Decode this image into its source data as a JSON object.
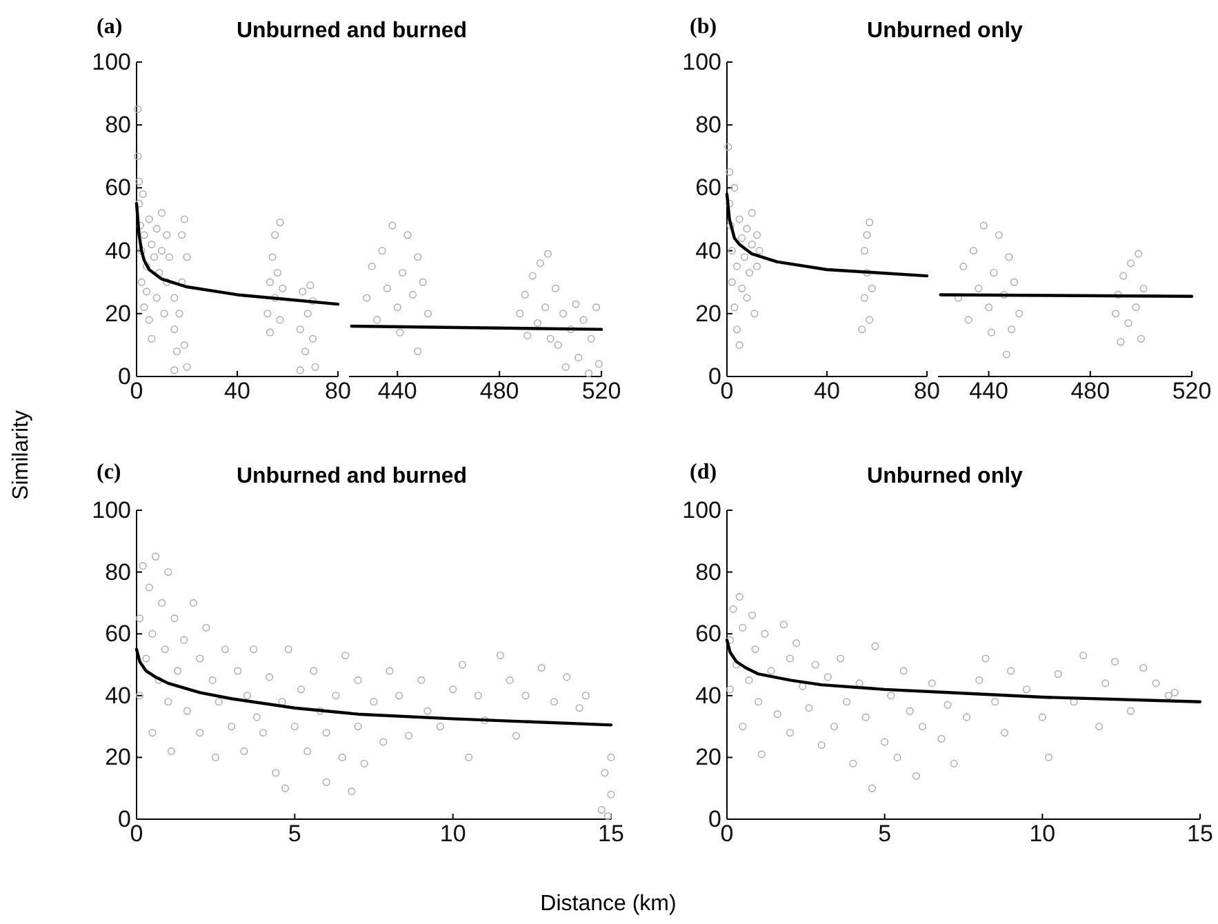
{
  "chart_data": [
    {
      "type": "scatter",
      "title": "Unburned and burned",
      "annotations": [
        "(a)"
      ],
      "ylabel": "Similarity",
      "xlim": [
        0,
        80
      ],
      "xticks": [
        0,
        40,
        80
      ],
      "ylim": [
        0,
        100
      ],
      "yticks": [
        0,
        20,
        40,
        60,
        80,
        100
      ],
      "series": [
        {
          "marker": "circle",
          "color": "#b0b0b0",
          "x": [
            0.5,
            0.5,
            1,
            1,
            1.5,
            2,
            2,
            2.5,
            3,
            3,
            4,
            4,
            5,
            5,
            6,
            6,
            7,
            8,
            8,
            9,
            10,
            10,
            11,
            12,
            12,
            13,
            15,
            15,
            15,
            16,
            17,
            18,
            18,
            19,
            19,
            20,
            20,
            52,
            53,
            53,
            54,
            55,
            55,
            56,
            57,
            57,
            58,
            65,
            65,
            66,
            67,
            68,
            69,
            70,
            71,
            70
          ],
          "values": [
            85,
            70,
            62,
            55,
            48,
            40,
            30,
            58,
            22,
            45,
            35,
            27,
            50,
            18,
            42,
            12,
            38,
            47,
            25,
            33,
            52,
            40,
            20,
            45,
            30,
            38,
            2,
            15,
            25,
            8,
            20,
            45,
            30,
            50,
            10,
            38,
            3,
            20,
            30,
            14,
            38,
            25,
            45,
            33,
            49,
            18,
            28,
            2,
            15,
            27,
            8,
            20,
            29,
            12,
            3,
            24
          ]
        },
        {
          "type": "line",
          "color": "#000000",
          "x": [
            0,
            1,
            2,
            3,
            5,
            10,
            20,
            40,
            60,
            80
          ],
          "values": [
            55,
            45,
            40,
            37,
            34,
            31,
            28.5,
            26,
            24.5,
            23
          ]
        }
      ]
    },
    {
      "type": "scatter",
      "xlim": [
        421,
        520
      ],
      "xticks": [
        440,
        480,
        520
      ],
      "ylim": [
        0,
        100
      ],
      "tick_labels": "x",
      "series": [
        {
          "marker": "circle",
          "color": "#b0b0b0",
          "x": [
            428,
            430,
            432,
            434,
            436,
            438,
            440,
            441,
            442,
            444,
            446,
            448,
            448,
            450,
            452,
            488,
            490,
            491,
            493,
            495,
            496,
            498,
            499,
            500,
            502,
            503,
            505,
            506,
            508,
            510,
            511,
            513,
            515,
            516,
            518,
            519
          ],
          "values": [
            25,
            35,
            18,
            40,
            28,
            48,
            22,
            14,
            33,
            45,
            26,
            8,
            38,
            30,
            20,
            20,
            26,
            13,
            32,
            17,
            36,
            22,
            39,
            12,
            28,
            10,
            20,
            3,
            15,
            23,
            6,
            18,
            1,
            12,
            22,
            4
          ]
        },
        {
          "type": "line",
          "color": "#000000",
          "x": [
            422,
            520
          ],
          "values": [
            16,
            15
          ]
        }
      ]
    },
    {
      "type": "scatter",
      "title": "Unburned only",
      "annotations": [
        "(b)"
      ],
      "xlim": [
        0,
        80
      ],
      "xticks": [
        0,
        40,
        80
      ],
      "ylim": [
        0,
        100
      ],
      "yticks": [
        0,
        20,
        40,
        60,
        80,
        100
      ],
      "series": [
        {
          "marker": "circle",
          "color": "#b0b0b0",
          "x": [
            0.5,
            1,
            1,
            1.5,
            2,
            2,
            3,
            3,
            4,
            4,
            5,
            5,
            6,
            6,
            7,
            8,
            8,
            9,
            10,
            10,
            11,
            12,
            12,
            13,
            54,
            55,
            55,
            56,
            57,
            57,
            58,
            56
          ],
          "values": [
            73,
            65,
            55,
            48,
            40,
            30,
            60,
            22,
            35,
            15,
            50,
            10,
            44,
            28,
            38,
            47,
            25,
            33,
            52,
            42,
            20,
            45,
            35,
            40,
            15,
            25,
            40,
            33,
            49,
            18,
            28,
            45
          ]
        },
        {
          "type": "line",
          "color": "#000000",
          "x": [
            0,
            1,
            3,
            5,
            10,
            20,
            40,
            60,
            80
          ],
          "values": [
            58,
            50,
            44,
            42,
            39,
            36.5,
            34,
            33,
            32
          ]
        }
      ]
    },
    {
      "type": "scatter",
      "xlim": [
        420,
        520
      ],
      "xticks": [
        440,
        480,
        520
      ],
      "ylim": [
        0,
        100
      ],
      "tick_labels": "x",
      "series": [
        {
          "marker": "circle",
          "color": "#b0b0b0",
          "x": [
            428,
            430,
            432,
            434,
            436,
            438,
            440,
            441,
            442,
            444,
            446,
            447,
            448,
            450,
            452,
            449,
            490,
            491,
            492,
            493,
            495,
            496,
            498,
            499,
            500,
            501
          ],
          "values": [
            25,
            35,
            18,
            40,
            28,
            48,
            22,
            14,
            33,
            45,
            26,
            7,
            38,
            30,
            20,
            15,
            20,
            26,
            11,
            32,
            17,
            36,
            22,
            39,
            12,
            28
          ]
        },
        {
          "type": "line",
          "color": "#000000",
          "x": [
            421,
            520
          ],
          "values": [
            26,
            25.5
          ]
        }
      ]
    },
    {
      "type": "scatter",
      "title": "Unburned and burned",
      "annotations": [
        "(c)"
      ],
      "xlabel": "Distance (km)",
      "xlim": [
        0,
        15
      ],
      "xticks": [
        0,
        5,
        10,
        15
      ],
      "ylim": [
        0,
        100
      ],
      "yticks": [
        0,
        20,
        40,
        60,
        80,
        100
      ],
      "series": [
        {
          "marker": "circle",
          "color": "#b0b0b0",
          "x": [
            0.1,
            0.1,
            0.2,
            0.3,
            0.4,
            0.5,
            0.5,
            0.6,
            0.7,
            0.8,
            0.9,
            1,
            1,
            1.1,
            1.2,
            1.3,
            1.5,
            1.6,
            1.8,
            2,
            2,
            2.2,
            2.4,
            2.5,
            2.6,
            2.8,
            3,
            3.2,
            3.4,
            3.5,
            3.7,
            3.8,
            4,
            4.2,
            4.4,
            4.6,
            4.7,
            4.8,
            5,
            5.2,
            5.4,
            5.6,
            5.8,
            6,
            6,
            6.3,
            6.5,
            6.6,
            6.8,
            7,
            7,
            7.2,
            7.5,
            7.8,
            8,
            8.3,
            8.6,
            9,
            9.2,
            9.6,
            10,
            10.3,
            10.5,
            10.8,
            11,
            11.5,
            11.8,
            12,
            12.3,
            12.8,
            13.2,
            13.6,
            14,
            14.2,
            14.8,
            14.9,
            15,
            14.7,
            15
          ],
          "values": [
            65,
            40,
            82,
            52,
            75,
            60,
            28,
            85,
            45,
            70,
            55,
            38,
            80,
            22,
            65,
            48,
            58,
            35,
            70,
            52,
            28,
            62,
            45,
            20,
            38,
            55,
            30,
            48,
            22,
            40,
            55,
            33,
            28,
            46,
            15,
            38,
            10,
            55,
            30,
            42,
            22,
            48,
            35,
            12,
            28,
            40,
            20,
            53,
            9,
            30,
            45,
            18,
            38,
            25,
            48,
            40,
            27,
            45,
            35,
            30,
            42,
            50,
            20,
            40,
            32,
            53,
            45,
            27,
            40,
            49,
            38,
            46,
            36,
            40,
            15,
            1,
            20,
            3,
            8
          ]
        },
        {
          "type": "line",
          "color": "#000000",
          "x": [
            0,
            0.1,
            0.3,
            0.6,
            1,
            2,
            3,
            5,
            7,
            10,
            15
          ],
          "values": [
            55,
            51,
            48,
            46,
            44,
            41,
            39,
            36,
            34,
            32.5,
            30.5
          ]
        }
      ]
    },
    {
      "type": "scatter",
      "title": "Unburned only",
      "annotations": [
        "(d)"
      ],
      "xlim": [
        0,
        15
      ],
      "xticks": [
        0,
        5,
        10,
        15
      ],
      "ylim": [
        0,
        100
      ],
      "yticks": [
        0,
        20,
        40,
        60,
        80,
        100
      ],
      "series": [
        {
          "marker": "circle",
          "color": "#b0b0b0",
          "x": [
            0.1,
            0.1,
            0.2,
            0.3,
            0.4,
            0.5,
            0.5,
            0.7,
            0.8,
            0.9,
            1,
            1.1,
            1.2,
            1.4,
            1.6,
            1.8,
            2,
            2,
            2.2,
            2.4,
            2.6,
            2.8,
            3,
            3.2,
            3.4,
            3.6,
            3.8,
            4,
            4.2,
            4.4,
            4.6,
            4.7,
            5,
            5.2,
            5.4,
            5.6,
            5.8,
            6,
            6.2,
            6.5,
            6.8,
            7,
            7.2,
            7.6,
            8,
            8.2,
            8.5,
            8.8,
            9,
            9.5,
            10,
            10.2,
            10.5,
            11,
            11.3,
            11.8,
            12,
            12.3,
            12.8,
            13.2,
            13.6,
            14,
            14.2
          ],
          "values": [
            58,
            42,
            68,
            50,
            72,
            62,
            30,
            45,
            66,
            55,
            38,
            21,
            60,
            48,
            34,
            63,
            52,
            28,
            57,
            43,
            36,
            50,
            24,
            46,
            30,
            52,
            38,
            18,
            44,
            33,
            10,
            56,
            25,
            40,
            20,
            48,
            35,
            14,
            30,
            44,
            26,
            37,
            18,
            33,
            45,
            52,
            38,
            28,
            48,
            42,
            33,
            20,
            47,
            38,
            53,
            30,
            44,
            51,
            35,
            49,
            44,
            40,
            41
          ]
        },
        {
          "type": "line",
          "color": "#000000",
          "x": [
            0,
            0.1,
            0.3,
            0.6,
            1,
            2,
            3,
            5,
            7,
            10,
            15
          ],
          "values": [
            58,
            54,
            51,
            49,
            47,
            45,
            43.5,
            42,
            41,
            39.5,
            38
          ]
        }
      ]
    }
  ]
}
